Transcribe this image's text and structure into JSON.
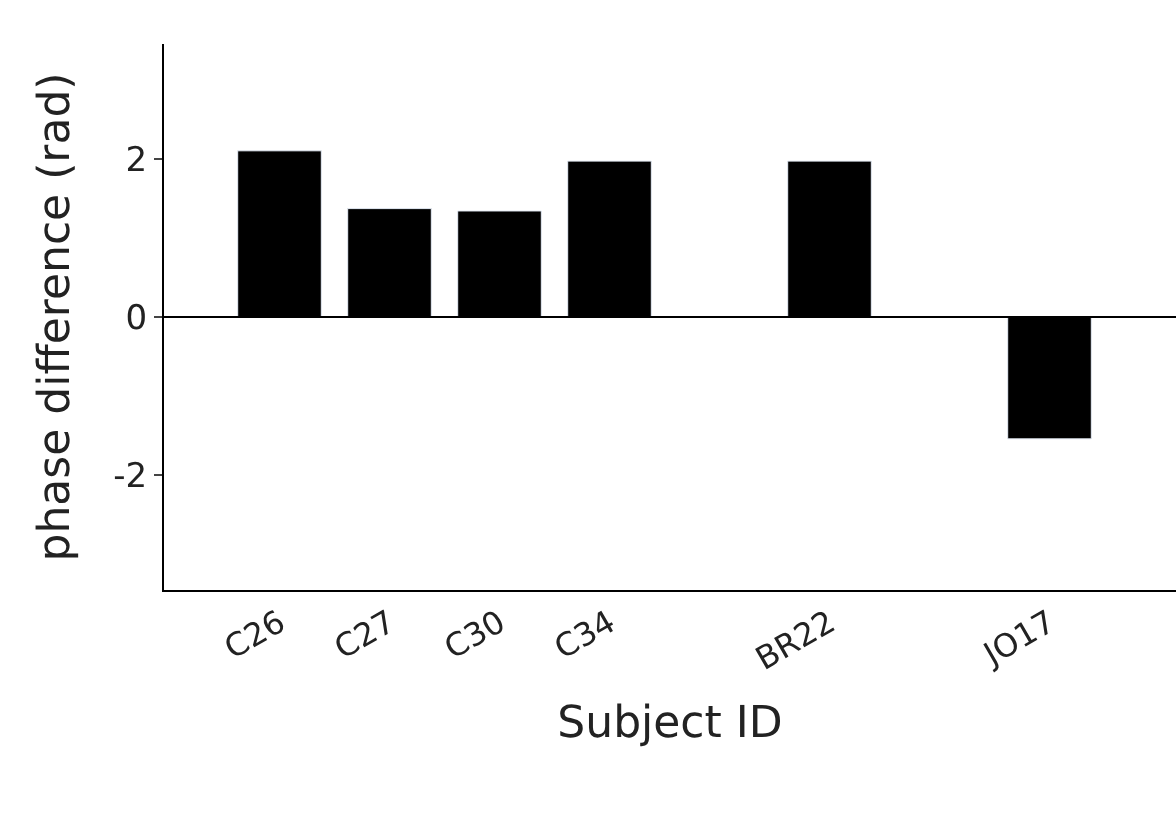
{
  "chart_data": {
    "type": "bar",
    "xlabel": "Subject ID",
    "ylabel": "phase difference (rad)",
    "categories": [
      "C26",
      "C27",
      "C30",
      "C34",
      null,
      "BR22",
      null,
      "JO17"
    ],
    "values": [
      2.1,
      1.37,
      1.34,
      1.97,
      null,
      1.97,
      null,
      -1.54
    ],
    "color": "#000000",
    "ylim": [
      -3.45,
      3.45
    ],
    "yticks": [
      -2,
      0,
      2
    ],
    "ref_lines": [
      {
        "axis": "y",
        "value": 0,
        "color": "#000000"
      }
    ],
    "legend": false
  }
}
